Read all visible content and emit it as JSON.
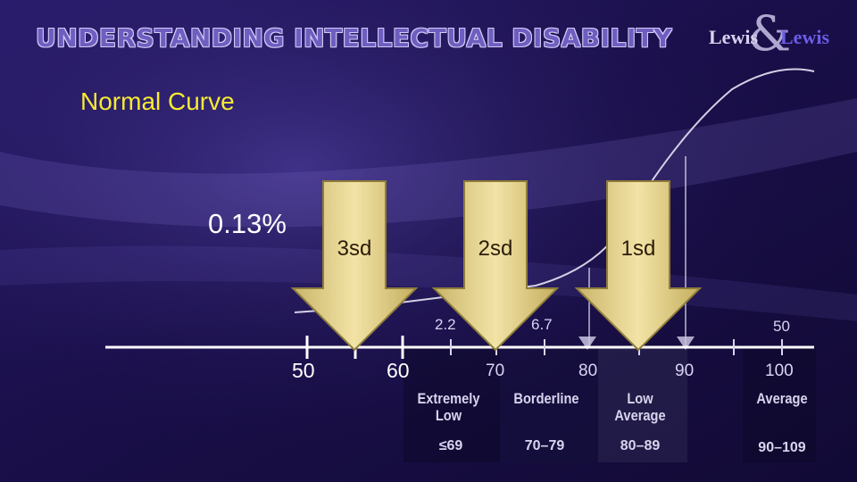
{
  "slide": {
    "title": "UNDERSTANDING INTELLECTUAL DISABILITY",
    "subtitle": "Normal Curve",
    "percent_label": "0.13%"
  },
  "logo": {
    "left": "Lewis",
    "ampersand": "&",
    "right": "Lewis"
  },
  "arrows": [
    {
      "label": "3sd"
    },
    {
      "label": "2sd"
    },
    {
      "label": "1sd"
    }
  ],
  "axis": {
    "ticks": [
      "50",
      "60",
      "70",
      "80",
      "90",
      "100"
    ],
    "percentages": [
      "2.2",
      "6.7",
      "50"
    ]
  },
  "categories": [
    {
      "label": "Extremely Low",
      "range": "≤69"
    },
    {
      "label": "Borderline",
      "range": "70–79"
    },
    {
      "label": "Low Average",
      "range": "80–89"
    },
    {
      "label": "Average",
      "range": "90–109"
    }
  ],
  "colors": {
    "title": "#6f5ec0",
    "subtitle": "#f6ea33",
    "arrow_fill": "#e2cf86",
    "arrow_edge": "#b8a45a",
    "background": "#1c1252"
  }
}
